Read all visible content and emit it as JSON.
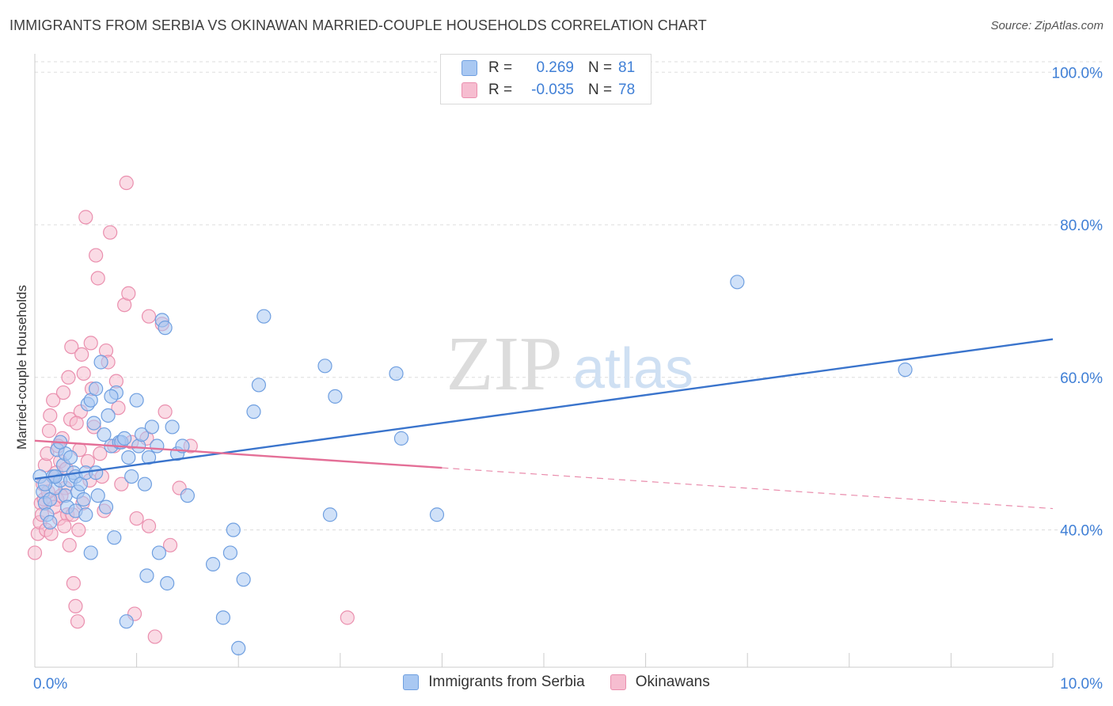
{
  "title": "IMMIGRANTS FROM SERBIA VS OKINAWAN MARRIED-COUPLE HOUSEHOLDS CORRELATION CHART",
  "source": "Source: ZipAtlas.com",
  "watermark": {
    "zip": "ZIP",
    "atlas": "atlas"
  },
  "legend_top": {
    "rows": [
      {
        "r_label": "R =",
        "r_value": "0.269",
        "n_label": "N =",
        "n_value": "81"
      },
      {
        "r_label": "R =",
        "r_value": "-0.035",
        "n_label": "N =",
        "n_value": "78"
      }
    ]
  },
  "colors": {
    "blue_fill": "#a9c8f2",
    "blue_stroke": "#6f9fe0",
    "blue_line": "#3a74cc",
    "pink_fill": "#f6bdd0",
    "pink_stroke": "#ea8fae",
    "pink_line": "#e46f97",
    "tick_label": "#3f7fd6",
    "grid": "#dddddd"
  },
  "chart_data": {
    "type": "scatter",
    "title": "IMMIGRANTS FROM SERBIA VS OKINAWAN MARRIED-COUPLE HOUSEHOLDS CORRELATION CHART",
    "xlabel": "",
    "ylabel": "Married-couple Households",
    "xlim": [
      0,
      10
    ],
    "ylim": [
      22,
      102
    ],
    "x_tick_labels": [
      "0.0%",
      "10.0%"
    ],
    "x_tick_values": [
      0,
      10
    ],
    "y_tick_labels": [
      "40.0%",
      "60.0%",
      "80.0%",
      "100.0%"
    ],
    "y_tick_values": [
      40,
      60,
      80,
      100
    ],
    "grid": true,
    "legend_position": "bottom",
    "series": [
      {
        "name": "Immigrants from Serbia",
        "r": 0.269,
        "n": 81,
        "trend": {
          "x": [
            0,
            10
          ],
          "y": [
            46.7,
            65.0
          ],
          "dashed_from": null
        },
        "points": [
          [
            0.05,
            47.0
          ],
          [
            0.08,
            45.0
          ],
          [
            0.1,
            43.5
          ],
          [
            0.12,
            42.0
          ],
          [
            0.15,
            44.0
          ],
          [
            0.18,
            47.0
          ],
          [
            0.2,
            45.5
          ],
          [
            0.22,
            50.5
          ],
          [
            0.25,
            46.5
          ],
          [
            0.28,
            48.5
          ],
          [
            0.3,
            44.5
          ],
          [
            0.32,
            43.0
          ],
          [
            0.35,
            46.5
          ],
          [
            0.38,
            47.5
          ],
          [
            0.4,
            47.0
          ],
          [
            0.42,
            45.0
          ],
          [
            0.45,
            46.0
          ],
          [
            0.48,
            44.0
          ],
          [
            0.5,
            47.5
          ],
          [
            0.52,
            56.5
          ],
          [
            0.55,
            57.0
          ],
          [
            0.58,
            54.0
          ],
          [
            0.6,
            47.5
          ],
          [
            0.62,
            44.5
          ],
          [
            0.65,
            62.0
          ],
          [
            0.68,
            52.5
          ],
          [
            0.7,
            43.0
          ],
          [
            0.72,
            55.0
          ],
          [
            0.75,
            51.0
          ],
          [
            0.78,
            39.0
          ],
          [
            0.8,
            58.0
          ],
          [
            0.83,
            51.5
          ],
          [
            0.85,
            51.5
          ],
          [
            0.88,
            52.0
          ],
          [
            0.9,
            28.0
          ],
          [
            0.92,
            49.5
          ],
          [
            0.95,
            47.0
          ],
          [
            1.0,
            57.0
          ],
          [
            1.02,
            51.0
          ],
          [
            1.05,
            52.5
          ],
          [
            1.08,
            46.0
          ],
          [
            1.1,
            34.0
          ],
          [
            1.12,
            49.5
          ],
          [
            1.15,
            53.5
          ],
          [
            1.2,
            51.0
          ],
          [
            1.22,
            37.0
          ],
          [
            1.25,
            67.5
          ],
          [
            1.28,
            66.5
          ],
          [
            1.3,
            33.0
          ],
          [
            1.35,
            53.5
          ],
          [
            1.4,
            50.0
          ],
          [
            1.45,
            51.0
          ],
          [
            1.5,
            44.5
          ],
          [
            1.75,
            35.5
          ],
          [
            1.85,
            28.5
          ],
          [
            1.92,
            37.0
          ],
          [
            1.95,
            40.0
          ],
          [
            2.0,
            24.5
          ],
          [
            2.05,
            33.5
          ],
          [
            2.15,
            55.5
          ],
          [
            2.2,
            59.0
          ],
          [
            2.25,
            68.0
          ],
          [
            2.9,
            42.0
          ],
          [
            2.95,
            57.5
          ],
          [
            2.85,
            61.5
          ],
          [
            3.55,
            60.5
          ],
          [
            3.6,
            52.0
          ],
          [
            3.95,
            42.0
          ],
          [
            6.9,
            72.5
          ],
          [
            8.55,
            61.0
          ],
          [
            0.6,
            58.5
          ],
          [
            0.75,
            57.5
          ],
          [
            0.3,
            50.0
          ],
          [
            0.4,
            42.5
          ],
          [
            0.55,
            37.0
          ],
          [
            0.15,
            41.0
          ],
          [
            0.2,
            47.0
          ],
          [
            0.35,
            49.5
          ],
          [
            0.5,
            42.0
          ],
          [
            0.1,
            46.0
          ],
          [
            0.25,
            51.5
          ]
        ]
      },
      {
        "name": "Okinawans",
        "r": -0.035,
        "n": 78,
        "trend": {
          "x": [
            0,
            10
          ],
          "y": [
            51.7,
            42.8
          ],
          "dashed_from": 4.0
        },
        "points": [
          [
            0.0,
            37.0
          ],
          [
            0.03,
            39.5
          ],
          [
            0.05,
            41.0
          ],
          [
            0.06,
            43.5
          ],
          [
            0.08,
            46.0
          ],
          [
            0.1,
            48.5
          ],
          [
            0.12,
            50.0
          ],
          [
            0.14,
            53.0
          ],
          [
            0.15,
            55.0
          ],
          [
            0.18,
            57.0
          ],
          [
            0.2,
            47.0
          ],
          [
            0.22,
            44.0
          ],
          [
            0.24,
            41.5
          ],
          [
            0.25,
            49.0
          ],
          [
            0.27,
            52.0
          ],
          [
            0.28,
            58.0
          ],
          [
            0.3,
            45.5
          ],
          [
            0.32,
            42.0
          ],
          [
            0.34,
            38.0
          ],
          [
            0.35,
            54.5
          ],
          [
            0.36,
            64.0
          ],
          [
            0.38,
            33.0
          ],
          [
            0.4,
            30.0
          ],
          [
            0.42,
            28.0
          ],
          [
            0.44,
            50.5
          ],
          [
            0.45,
            55.5
          ],
          [
            0.46,
            63.0
          ],
          [
            0.48,
            60.5
          ],
          [
            0.5,
            81.0
          ],
          [
            0.52,
            49.0
          ],
          [
            0.54,
            46.5
          ],
          [
            0.55,
            64.5
          ],
          [
            0.56,
            58.5
          ],
          [
            0.58,
            53.5
          ],
          [
            0.6,
            76.0
          ],
          [
            0.62,
            73.0
          ],
          [
            0.64,
            50.0
          ],
          [
            0.66,
            47.0
          ],
          [
            0.68,
            42.5
          ],
          [
            0.7,
            63.5
          ],
          [
            0.72,
            62.0
          ],
          [
            0.74,
            79.0
          ],
          [
            0.78,
            51.0
          ],
          [
            0.8,
            59.5
          ],
          [
            0.82,
            56.0
          ],
          [
            0.85,
            46.0
          ],
          [
            0.88,
            69.5
          ],
          [
            0.9,
            85.5
          ],
          [
            0.92,
            71.0
          ],
          [
            0.95,
            51.5
          ],
          [
            0.98,
            29.0
          ],
          [
            1.0,
            41.5
          ],
          [
            1.1,
            52.0
          ],
          [
            1.12,
            40.5
          ],
          [
            1.12,
            68.0
          ],
          [
            1.18,
            26.0
          ],
          [
            1.25,
            67.0
          ],
          [
            1.28,
            55.5
          ],
          [
            1.33,
            38.0
          ],
          [
            1.42,
            45.5
          ],
          [
            1.53,
            51.0
          ],
          [
            3.07,
            28.5
          ],
          [
            0.07,
            42.0
          ],
          [
            0.09,
            44.0
          ],
          [
            0.11,
            40.0
          ],
          [
            0.13,
            45.0
          ],
          [
            0.16,
            39.5
          ],
          [
            0.19,
            43.0
          ],
          [
            0.21,
            47.5
          ],
          [
            0.23,
            51.0
          ],
          [
            0.26,
            44.5
          ],
          [
            0.29,
            40.5
          ],
          [
            0.31,
            48.0
          ],
          [
            0.33,
            60.0
          ],
          [
            0.37,
            42.0
          ],
          [
            0.41,
            54.0
          ],
          [
            0.43,
            40.0
          ],
          [
            0.47,
            43.5
          ]
        ]
      }
    ]
  },
  "legend_bottom": [
    {
      "label": "Immigrants from Serbia"
    },
    {
      "label": "Okinawans"
    }
  ]
}
